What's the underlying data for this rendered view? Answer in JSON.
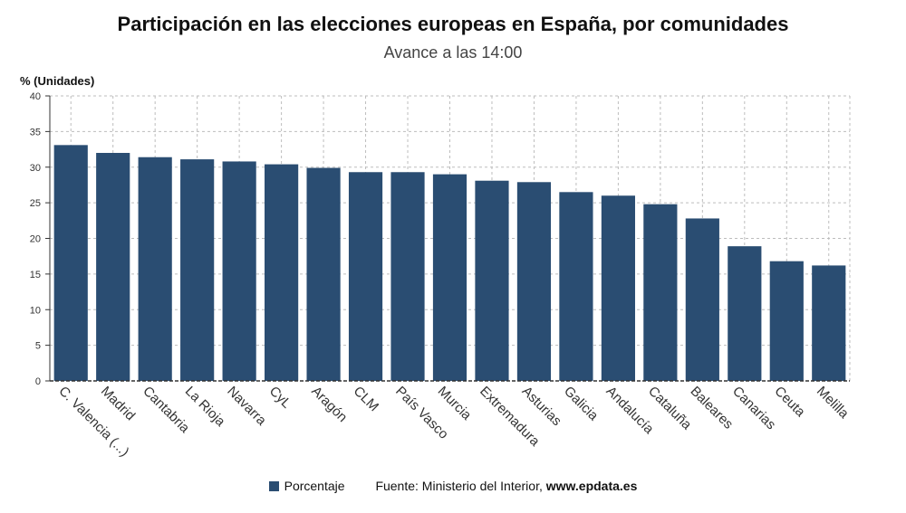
{
  "chart_data": {
    "type": "bar",
    "title": "Participación en las elecciones europeas en España, por comunidades",
    "subtitle": "Avance a las 14:00",
    "ylabel": "% (Unidades)",
    "xlabel": "",
    "ylim": [
      0,
      40
    ],
    "yticks": [
      0,
      5,
      10,
      15,
      20,
      25,
      30,
      35,
      40
    ],
    "grid": true,
    "categories": [
      "C. Valencia (...)",
      "Madrid",
      "Cantabria",
      "La Rioja",
      "Navarra",
      "CyL",
      "Aragón",
      "CLM",
      "País Vasco",
      "Murcia",
      "Extremadura",
      "Asturias",
      "Galicia",
      "Andalucía",
      "Cataluña",
      "Baleares",
      "Canarias",
      "Ceuta",
      "Melilla"
    ],
    "series": [
      {
        "name": "Porcentaje",
        "values": [
          33.1,
          32.0,
          31.4,
          31.1,
          30.8,
          30.4,
          29.9,
          29.3,
          29.3,
          29.0,
          28.1,
          27.9,
          26.5,
          26.0,
          24.8,
          22.8,
          18.9,
          16.8,
          16.2
        ]
      }
    ],
    "colors": {
      "bar": "#2a4d72",
      "grid": "#bdbdbd",
      "axis": "#333333"
    },
    "legend_position": "bottom"
  },
  "legend": {
    "label": "Porcentaje",
    "source_prefix": "Fuente: Ministerio del Interior, ",
    "source_brand": "www.epdata.es"
  }
}
